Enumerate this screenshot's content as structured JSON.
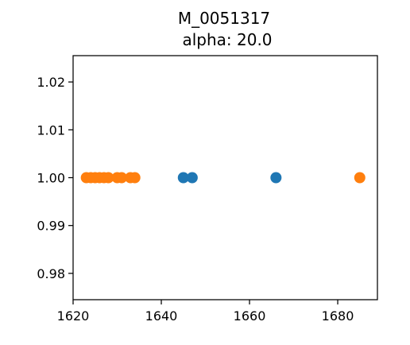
{
  "chart_data": {
    "type": "scatter",
    "title": "M_0051317",
    "subtitle": "alpha: 20.0",
    "xlabel": "",
    "ylabel": "",
    "xlim": [
      1620,
      1689
    ],
    "ylim": [
      0.9745,
      1.0255
    ],
    "grid": false,
    "x_ticks": [
      1620,
      1640,
      1660,
      1680
    ],
    "x_tick_labels": [
      "1620",
      "1640",
      "1660",
      "1680"
    ],
    "y_ticks": [
      0.98,
      0.99,
      1.0,
      1.01,
      1.02
    ],
    "y_tick_labels": [
      "0.98",
      "0.99",
      "1.00",
      "1.01",
      "1.02"
    ],
    "series": [
      {
        "name": "series-blue",
        "color": "#1f77b4",
        "points": [
          {
            "x": 1645,
            "y": 1.0
          },
          {
            "x": 1647,
            "y": 1.0
          },
          {
            "x": 1666,
            "y": 1.0
          }
        ]
      },
      {
        "name": "series-orange",
        "color": "#ff7f0e",
        "points": [
          {
            "x": 1623,
            "y": 1.0
          },
          {
            "x": 1624,
            "y": 1.0
          },
          {
            "x": 1625,
            "y": 1.0
          },
          {
            "x": 1626,
            "y": 1.0
          },
          {
            "x": 1627,
            "y": 1.0
          },
          {
            "x": 1628,
            "y": 1.0
          },
          {
            "x": 1630,
            "y": 1.0
          },
          {
            "x": 1631,
            "y": 1.0
          },
          {
            "x": 1633,
            "y": 1.0
          },
          {
            "x": 1634,
            "y": 1.0
          },
          {
            "x": 1685,
            "y": 1.0
          }
        ]
      }
    ]
  }
}
